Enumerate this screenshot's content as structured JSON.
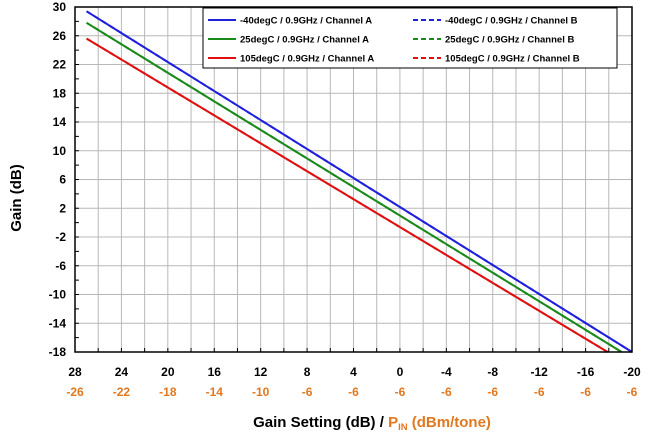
{
  "chart_data": {
    "type": "line",
    "ylabel": "Gain (dB)",
    "xlabel_parts": {
      "primary": "Gain Setting (dB)",
      "separator": " / ",
      "secondary_main": "P",
      "secondary_sub": "IN",
      "secondary_unit": " (dBm/tone)"
    },
    "xlim": [
      28,
      -20
    ],
    "ylim": [
      -18,
      30
    ],
    "x_ticks": [
      28,
      24,
      20,
      16,
      12,
      8,
      4,
      0,
      -4,
      -8,
      -12,
      -16,
      -20
    ],
    "x_tick_labels": [
      "28",
      "24",
      "20",
      "16",
      "12",
      "8",
      "4",
      "0",
      "-4",
      "-8",
      "-12",
      "-16",
      "-20"
    ],
    "pin_tick_labels": [
      "-26",
      "-22",
      "-18",
      "-14",
      "-10",
      "-6",
      "-6",
      "-6",
      "-6",
      "-6",
      "-6",
      "-6",
      "-6"
    ],
    "y_ticks": [
      30,
      26,
      22,
      18,
      14,
      10,
      6,
      2,
      -2,
      -6,
      -10,
      -14,
      -18
    ],
    "y_tick_labels": [
      "30",
      "26",
      "22",
      "18",
      "14",
      "10",
      "6",
      "2",
      "-2",
      "-6",
      "-10",
      "-14",
      "-18"
    ],
    "grid": true,
    "legend_position": "top-right",
    "series": [
      {
        "name": "-40degC  /  0.9GHz  /  Channel  A",
        "color": "#1f1fdc",
        "dash": "solid",
        "x": [
          27,
          -20
        ],
        "y": [
          29.4,
          -18.0
        ]
      },
      {
        "name": "-40degC  /  0.9GHz  /  Channel  B",
        "color": "#1f1fdc",
        "dash": "dashed",
        "x": [
          27,
          -20
        ],
        "y": [
          29.4,
          -18.0
        ]
      },
      {
        "name": "25degC  /  0.9GHz  /  Channel  A",
        "color": "#1a8a1a",
        "dash": "solid",
        "x": [
          27,
          -19.1
        ],
        "y": [
          27.8,
          -18.0
        ]
      },
      {
        "name": "25degC  /  0.9GHz  /  Channel  B",
        "color": "#1a8a1a",
        "dash": "dashed",
        "x": [
          27,
          -19.1
        ],
        "y": [
          27.8,
          -18.0
        ]
      },
      {
        "name": "105degC  /  0.9GHz  /  Channel  A",
        "color": "#e01010",
        "dash": "solid",
        "x": [
          27,
          -17.9
        ],
        "y": [
          25.6,
          -18.0
        ]
      },
      {
        "name": "105degC  /  0.9GHz  /  Channel  B",
        "color": "#e01010",
        "dash": "dashed",
        "x": [
          27,
          -17.9
        ],
        "y": [
          25.6,
          -18.0
        ]
      }
    ],
    "colors": {
      "pin_label": "#e07820",
      "grid": "#b8b8b8",
      "axis": "#000000"
    }
  }
}
